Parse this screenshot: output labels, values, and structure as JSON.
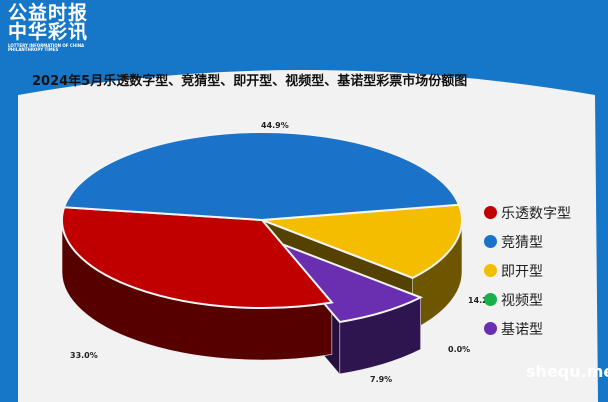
{
  "logo": {
    "line1": "公益时报",
    "line2": "中华彩讯",
    "line3": "LOTTERY INFORMATION OF CHINA PHILANTHROPY TIMES"
  },
  "watermark": "shequ.me",
  "chart_data": {
    "type": "pie",
    "title": "2024年5月乐透数字型、竞猜型、即开型、视频型、基诺型彩票市场份额图",
    "legend_position": "right",
    "slices": [
      {
        "name": "乐透数字型",
        "value": 33.0,
        "label": "33.0%",
        "color": "#c00000"
      },
      {
        "name": "竞猜型",
        "value": 44.9,
        "label": "44.9%",
        "color": "#1a73c8"
      },
      {
        "name": "即开型",
        "value": 14.2,
        "label": "14.2%",
        "color": "#f5bd00"
      },
      {
        "name": "视频型",
        "value": 0.0,
        "label": "0.0%",
        "color": "#18b04a"
      },
      {
        "name": "基诺型",
        "value": 7.9,
        "label": "7.9%",
        "color": "#6a2fb0"
      }
    ]
  }
}
